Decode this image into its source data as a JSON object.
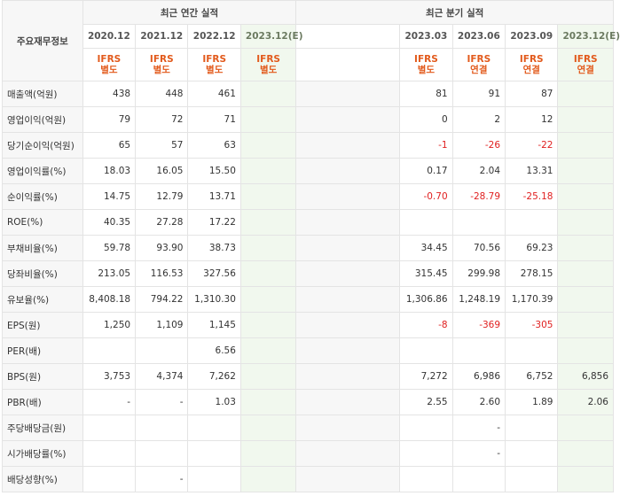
{
  "header": {
    "corner_label": "주요재무정보",
    "annual_title": "최근 연간 실적",
    "quarter_title": "최근 분기 실적",
    "annual_periods": [
      "2020.12",
      "2021.12",
      "2022.12",
      "2023.12(E)"
    ],
    "quarter_periods": [
      "2023.03",
      "2023.06",
      "2023.09",
      "2023.12(E)"
    ],
    "annual_basis": [
      [
        "IFRS",
        "별도"
      ],
      [
        "IFRS",
        "별도"
      ],
      [
        "IFRS",
        "별도"
      ],
      [
        "IFRS",
        "별도"
      ]
    ],
    "quarter_basis": [
      [
        "IFRS",
        "별도"
      ],
      [
        "IFRS",
        "연결"
      ],
      [
        "IFRS",
        "연결"
      ],
      [
        "IFRS",
        "연결"
      ]
    ]
  },
  "rows": [
    {
      "label": "매출액(억원)",
      "annual": [
        "438",
        "448",
        "461",
        ""
      ],
      "quarter": [
        "81",
        "91",
        "87",
        ""
      ]
    },
    {
      "label": "영업이익(억원)",
      "annual": [
        "79",
        "72",
        "71",
        ""
      ],
      "quarter": [
        "0",
        "2",
        "12",
        ""
      ]
    },
    {
      "label": "당기순이익(억원)",
      "annual": [
        "65",
        "57",
        "63",
        ""
      ],
      "quarter": [
        "-1",
        "-26",
        "-22",
        ""
      ]
    },
    {
      "label": "영업이익률(%)",
      "annual": [
        "18.03",
        "16.05",
        "15.50",
        ""
      ],
      "quarter": [
        "0.17",
        "2.04",
        "13.31",
        ""
      ]
    },
    {
      "label": "순이익률(%)",
      "annual": [
        "14.75",
        "12.79",
        "13.71",
        ""
      ],
      "quarter": [
        "-0.70",
        "-28.79",
        "-25.18",
        ""
      ]
    },
    {
      "label": "ROE(%)",
      "annual": [
        "40.35",
        "27.28",
        "17.22",
        ""
      ],
      "quarter": [
        "",
        "",
        "",
        ""
      ]
    },
    {
      "label": "부채비율(%)",
      "annual": [
        "59.78",
        "93.90",
        "38.73",
        ""
      ],
      "quarter": [
        "34.45",
        "70.56",
        "69.23",
        ""
      ]
    },
    {
      "label": "당좌비율(%)",
      "annual": [
        "213.05",
        "116.53",
        "327.56",
        ""
      ],
      "quarter": [
        "315.45",
        "299.98",
        "278.15",
        ""
      ]
    },
    {
      "label": "유보율(%)",
      "annual": [
        "8,408.18",
        "794.22",
        "1,310.30",
        ""
      ],
      "quarter": [
        "1,306.86",
        "1,248.19",
        "1,170.39",
        ""
      ]
    },
    {
      "label": "EPS(원)",
      "annual": [
        "1,250",
        "1,109",
        "1,145",
        ""
      ],
      "quarter": [
        "-8",
        "-369",
        "-305",
        ""
      ]
    },
    {
      "label": "PER(배)",
      "annual": [
        "",
        "",
        "6.56",
        ""
      ],
      "quarter": [
        "",
        "",
        "",
        ""
      ]
    },
    {
      "label": "BPS(원)",
      "annual": [
        "3,753",
        "4,374",
        "7,262",
        ""
      ],
      "quarter": [
        "7,272",
        "6,986",
        "6,752",
        "6,856"
      ]
    },
    {
      "label": "PBR(배)",
      "annual": [
        "-",
        "-",
        "1.03",
        ""
      ],
      "quarter": [
        "2.55",
        "2.60",
        "1.89",
        "2.06"
      ]
    },
    {
      "label": "주당배당금(원)",
      "annual": [
        "",
        "",
        "",
        ""
      ],
      "quarter": [
        "",
        "-",
        "",
        ""
      ]
    },
    {
      "label": "시가배당률(%)",
      "annual": [
        "",
        "",
        "",
        ""
      ],
      "quarter": [
        "",
        "-",
        "",
        ""
      ]
    },
    {
      "label": "배당성향(%)",
      "annual": [
        "",
        "-",
        "",
        ""
      ],
      "quarter": [
        "",
        "",
        "",
        ""
      ]
    }
  ]
}
